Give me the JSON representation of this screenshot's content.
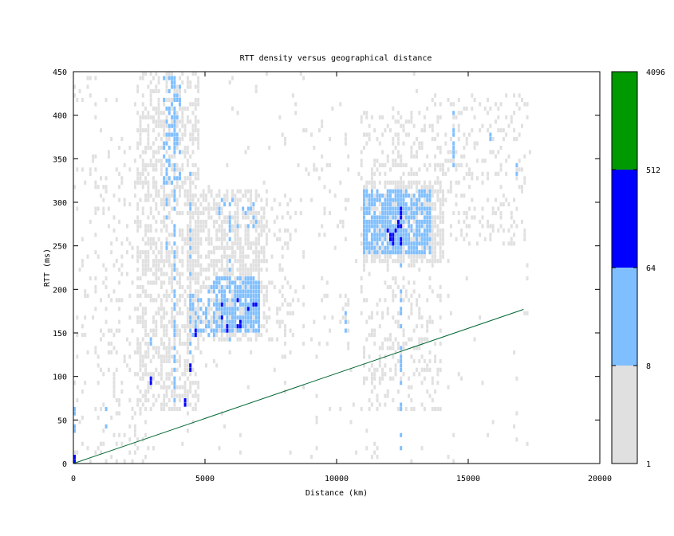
{
  "chart_data": {
    "type": "heatmap",
    "title": "RTT density versus geographical distance",
    "xlabel": "Distance (km)",
    "ylabel": "RTT (ms)",
    "xlim": [
      0,
      20000
    ],
    "ylim": [
      0,
      450
    ],
    "xticks": [
      0,
      5000,
      10000,
      15000,
      20000
    ],
    "yticks": [
      0,
      50,
      100,
      150,
      200,
      250,
      300,
      350,
      400,
      450
    ],
    "grid": false,
    "cell_width_km": 100,
    "cell_height_ms": 5,
    "colorbar": {
      "scale": "log",
      "ticks": [
        1,
        8,
        64,
        512,
        4096
      ],
      "bins": [
        {
          "min": 1,
          "max": 8,
          "color": "#e0e0e0"
        },
        {
          "min": 8,
          "max": 64,
          "color": "#7fbfff"
        },
        {
          "min": 64,
          "max": 512,
          "color": "#0000ff"
        },
        {
          "min": 512,
          "max": 4096,
          "color": "#009900"
        }
      ]
    },
    "reference_line": {
      "color": "#006633",
      "x": [
        0,
        17100
      ],
      "y": [
        0,
        177
      ]
    },
    "density_regions": [
      {
        "x": [
          0,
          800
        ],
        "y": [
          0,
          450
        ],
        "level": 1,
        "fill": 0.05
      },
      {
        "x": [
          800,
          2800
        ],
        "y": [
          0,
          370
        ],
        "level": 1,
        "fill": 0.12
      },
      {
        "x": [
          2400,
          4700
        ],
        "y": [
          60,
          450
        ],
        "level": 1,
        "fill": 0.45
      },
      {
        "x": [
          4300,
          7300
        ],
        "y": [
          140,
          310
        ],
        "level": 1,
        "fill": 0.5
      },
      {
        "x": [
          6500,
          8200
        ],
        "y": [
          140,
          300
        ],
        "level": 1,
        "fill": 0.15
      },
      {
        "x": [
          7800,
          10500
        ],
        "y": [
          120,
          400
        ],
        "level": 1,
        "fill": 0.05
      },
      {
        "x": [
          10900,
          13900
        ],
        "y": [
          60,
          400
        ],
        "level": 1,
        "fill": 0.2
      },
      {
        "x": [
          11000,
          14000
        ],
        "y": [
          230,
          320
        ],
        "level": 1,
        "fill": 0.55
      },
      {
        "x": [
          13500,
          17200
        ],
        "y": [
          250,
          420
        ],
        "level": 1,
        "fill": 0.15
      },
      {
        "x": [
          5300,
          7000
        ],
        "y": [
          150,
          210
        ],
        "level": 2,
        "fill": 0.7
      },
      {
        "x": [
          4500,
          5300
        ],
        "y": [
          145,
          200
        ],
        "level": 2,
        "fill": 0.25
      },
      {
        "x": [
          3400,
          4000
        ],
        "y": [
          320,
          440
        ],
        "level": 2,
        "fill": 0.25
      },
      {
        "x": [
          5500,
          7000
        ],
        "y": [
          270,
          300
        ],
        "level": 2,
        "fill": 0.2
      },
      {
        "x": [
          11000,
          13500
        ],
        "y": [
          240,
          310
        ],
        "level": 2,
        "fill": 0.75
      },
      {
        "x": [
          11800,
          12500
        ],
        "y": [
          250,
          290
        ],
        "level": 3,
        "fill": 0.2
      },
      {
        "x": [
          5600,
          6900
        ],
        "y": [
          155,
          185
        ],
        "level": 3,
        "fill": 0.1
      }
    ],
    "density_streaks": [
      {
        "x": 3800,
        "y": [
          60,
          450
        ],
        "level": 2,
        "fill": 0.65
      },
      {
        "x": 3500,
        "y": [
          220,
          440
        ],
        "level": 2,
        "fill": 0.2
      },
      {
        "x": 4400,
        "y": [
          100,
          330
        ],
        "level": 2,
        "fill": 0.35
      },
      {
        "x": 1200,
        "y": [
          20,
          60
        ],
        "level": 2,
        "fill": 0.4
      },
      {
        "x": 2900,
        "y": [
          90,
          140
        ],
        "level": 2,
        "fill": 0.35
      },
      {
        "x": 5900,
        "y": [
          140,
          300
        ],
        "level": 2,
        "fill": 0.4
      },
      {
        "x": 6700,
        "y": [
          160,
          230
        ],
        "level": 2,
        "fill": 0.4
      },
      {
        "x": 12400,
        "y": [
          0,
          300
        ],
        "level": 2,
        "fill": 0.3
      },
      {
        "x": 14400,
        "y": [
          340,
          400
        ],
        "level": 2,
        "fill": 0.4
      },
      {
        "x": 15800,
        "y": [
          355,
          375
        ],
        "level": 2,
        "fill": 0.45
      },
      {
        "x": 16800,
        "y": [
          330,
          340
        ],
        "level": 2,
        "fill": 0.5
      },
      {
        "x": 10300,
        "y": [
          150,
          170
        ],
        "level": 2,
        "fill": 0.45
      },
      {
        "x": 0,
        "y": [
          0,
          60
        ],
        "level": 2,
        "fill": 0.4
      },
      {
        "x": 4600,
        "y": [
          140,
          150
        ],
        "level": 3,
        "fill": 0.6
      },
      {
        "x": 5800,
        "y": [
          140,
          160
        ],
        "level": 3,
        "fill": 0.6
      },
      {
        "x": 4200,
        "y": [
          68,
          72
        ],
        "level": 3,
        "fill": 0.9
      },
      {
        "x": 4400,
        "y": [
          108,
          112
        ],
        "level": 3,
        "fill": 0.9
      },
      {
        "x": 2900,
        "y": [
          93,
          97
        ],
        "level": 3,
        "fill": 0.9
      },
      {
        "x": 12100,
        "y": [
          250,
          280
        ],
        "level": 3,
        "fill": 0.55
      },
      {
        "x": 12400,
        "y": [
          240,
          290
        ],
        "level": 3,
        "fill": 0.45
      },
      {
        "x": 0,
        "y": [
          0,
          5
        ],
        "level": 3,
        "fill": 1.0
      }
    ],
    "background_noise_fill": 0.015
  }
}
